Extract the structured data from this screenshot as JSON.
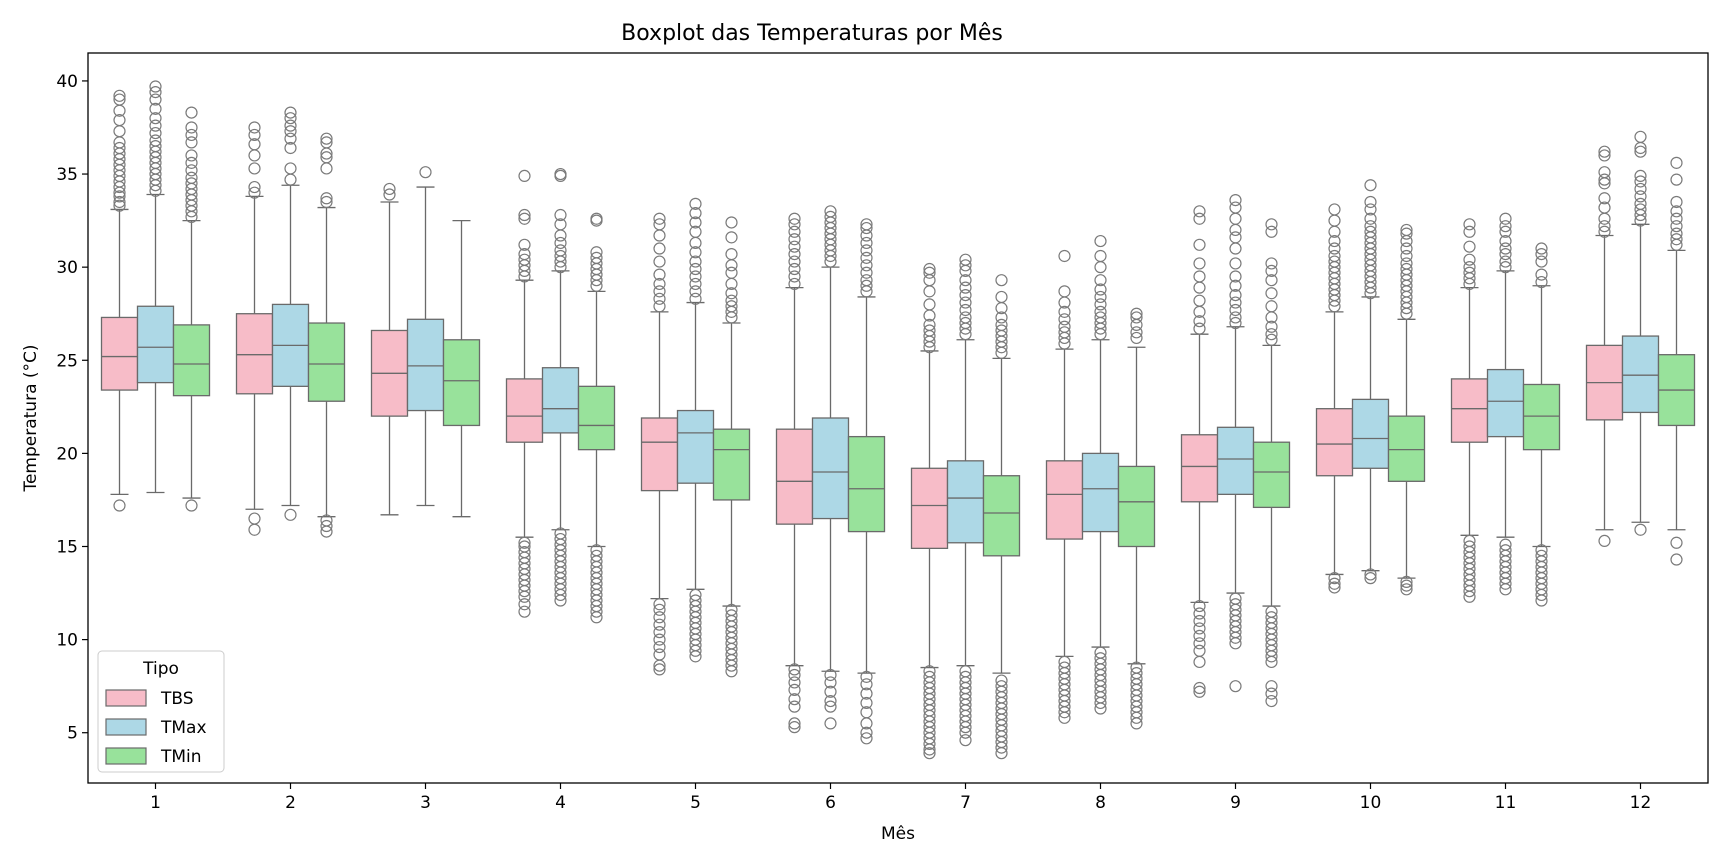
{
  "chart_data": {
    "type": "boxplot",
    "title": "Boxplot das Temperaturas por Mês",
    "xlabel": "Mês",
    "ylabel": "Temperatura (°C)",
    "ylim": [
      2.3,
      41.5
    ],
    "yticks": [
      5,
      10,
      15,
      20,
      25,
      30,
      35,
      40
    ],
    "categories": [
      "1",
      "2",
      "3",
      "4",
      "5",
      "6",
      "7",
      "8",
      "9",
      "10",
      "11",
      "12"
    ],
    "legend": {
      "title": "Tipo",
      "position": "lower-left"
    },
    "grid": false,
    "colors": {
      "TBS": "#f7bcc8",
      "TMax": "#add8e6",
      "TMin": "#98e29b",
      "line": "#6a6a6a",
      "flier": "#7a7a7a"
    },
    "series": [
      {
        "name": "TBS",
        "boxes": [
          {
            "whislo": 17.8,
            "q1": 23.4,
            "med": 25.2,
            "q3": 27.3,
            "whishi": 33.1,
            "fliers": [
              17.2,
              33.3,
              33.5,
              33.8,
              34.0,
              34.3,
              34.6,
              34.9,
              35.2,
              35.5,
              35.8,
              36.1,
              36.4,
              36.7,
              37.3,
              37.9,
              38.4,
              39.0,
              39.2
            ]
          },
          {
            "whislo": 17.0,
            "q1": 23.2,
            "med": 25.3,
            "q3": 27.5,
            "whishi": 33.8,
            "fliers": [
              15.9,
              16.5,
              34.0,
              34.3,
              35.3,
              36.0,
              36.6,
              37.1,
              37.5
            ]
          },
          {
            "whislo": 16.7,
            "q1": 22.0,
            "med": 24.3,
            "q3": 26.6,
            "whishi": 33.5,
            "fliers": [
              33.9,
              34.2
            ]
          },
          {
            "whislo": 15.5,
            "q1": 20.6,
            "med": 22.0,
            "q3": 24.0,
            "whishi": 29.3,
            "fliers": [
              11.5,
              11.9,
              12.3,
              12.6,
              12.9,
              13.2,
              13.5,
              13.8,
              14.1,
              14.4,
              14.7,
              15.0,
              15.2,
              29.5,
              29.8,
              30.1,
              30.4,
              30.7,
              31.2,
              32.6,
              32.8,
              34.9
            ]
          },
          {
            "whislo": 12.2,
            "q1": 18.0,
            "med": 20.6,
            "q3": 21.9,
            "whishi": 27.6,
            "fliers": [
              8.4,
              8.6,
              9.2,
              9.6,
              10.0,
              10.4,
              10.8,
              11.2,
              11.6,
              11.9,
              27.9,
              28.3,
              28.7,
              29.1,
              29.6,
              30.3,
              31.0,
              31.7,
              32.3,
              32.6
            ]
          },
          {
            "whislo": 8.6,
            "q1": 16.2,
            "med": 18.5,
            "q3": 21.3,
            "whishi": 28.9,
            "fliers": [
              5.3,
              5.5,
              6.4,
              6.8,
              7.3,
              7.7,
              8.1,
              8.4,
              29.1,
              29.5,
              29.9,
              30.3,
              30.7,
              31.1,
              31.5,
              31.9,
              32.3,
              32.6
            ]
          },
          {
            "whislo": 8.5,
            "q1": 14.9,
            "med": 17.2,
            "q3": 19.2,
            "whishi": 25.5,
            "fliers": [
              3.9,
              4.1,
              4.4,
              4.7,
              5.0,
              5.3,
              5.6,
              5.9,
              6.2,
              6.5,
              6.8,
              7.1,
              7.4,
              7.7,
              8.0,
              8.3,
              25.7,
              26.0,
              26.3,
              26.6,
              26.9,
              27.4,
              28.0,
              28.7,
              29.3,
              29.7,
              29.9
            ]
          },
          {
            "whislo": 9.1,
            "q1": 15.4,
            "med": 17.8,
            "q3": 19.6,
            "whishi": 25.6,
            "fliers": [
              5.8,
              6.1,
              6.4,
              6.7,
              7.0,
              7.3,
              7.6,
              7.9,
              8.2,
              8.5,
              8.8,
              25.9,
              26.2,
              26.5,
              26.8,
              27.2,
              27.6,
              28.1,
              28.7,
              30.6
            ]
          },
          {
            "whislo": 12.0,
            "q1": 17.4,
            "med": 19.3,
            "q3": 21.0,
            "whishi": 26.4,
            "fliers": [
              7.2,
              7.4,
              8.8,
              9.4,
              9.8,
              10.2,
              10.6,
              11.0,
              11.4,
              11.8,
              26.7,
              27.1,
              27.6,
              28.2,
              28.9,
              29.5,
              30.2,
              31.2,
              32.6,
              33.0
            ]
          },
          {
            "whislo": 13.5,
            "q1": 18.8,
            "med": 20.5,
            "q3": 22.4,
            "whishi": 27.6,
            "fliers": [
              12.8,
              13.0,
              13.3,
              27.9,
              28.2,
              28.5,
              28.8,
              29.1,
              29.4,
              29.7,
              30.0,
              30.3,
              30.6,
              31.0,
              31.4,
              31.9,
              32.5,
              33.1
            ]
          },
          {
            "whislo": 15.6,
            "q1": 20.6,
            "med": 22.4,
            "q3": 24.0,
            "whishi": 28.9,
            "fliers": [
              12.3,
              12.6,
              12.9,
              13.2,
              13.5,
              13.8,
              14.1,
              14.4,
              14.7,
              15.0,
              15.3,
              29.1,
              29.4,
              29.7,
              30.0,
              30.4,
              31.1,
              31.9,
              32.3
            ]
          },
          {
            "whislo": 15.9,
            "q1": 21.8,
            "med": 23.8,
            "q3": 25.8,
            "whishi": 31.7,
            "fliers": [
              15.3,
              31.9,
              32.2,
              32.6,
              33.2,
              33.7,
              34.5,
              34.7,
              35.1,
              36.0,
              36.2
            ]
          }
        ]
      },
      {
        "name": "TMax",
        "boxes": [
          {
            "whislo": 17.9,
            "q1": 23.8,
            "med": 25.7,
            "q3": 27.9,
            "whishi": 33.9,
            "fliers": [
              34.1,
              34.4,
              34.7,
              35.0,
              35.3,
              35.6,
              35.9,
              36.2,
              36.5,
              36.8,
              37.2,
              37.6,
              38.0,
              38.5,
              39.0,
              39.4,
              39.7
            ]
          },
          {
            "whislo": 17.2,
            "q1": 23.6,
            "med": 25.8,
            "q3": 28.0,
            "whishi": 34.4,
            "fliers": [
              16.7,
              34.7,
              35.3,
              36.4,
              36.9,
              37.3,
              37.6,
              38.0,
              38.3
            ]
          },
          {
            "whislo": 17.2,
            "q1": 22.3,
            "med": 24.7,
            "q3": 27.2,
            "whishi": 34.3,
            "fliers": [
              35.1
            ]
          },
          {
            "whislo": 15.9,
            "q1": 21.1,
            "med": 22.4,
            "q3": 24.6,
            "whishi": 29.8,
            "fliers": [
              12.1,
              12.4,
              12.7,
              13.0,
              13.3,
              13.6,
              13.9,
              14.2,
              14.5,
              14.8,
              15.1,
              15.4,
              15.7,
              30.0,
              30.3,
              30.6,
              30.9,
              31.3,
              31.7,
              32.3,
              32.8,
              34.9,
              35.0
            ]
          },
          {
            "whislo": 12.7,
            "q1": 18.4,
            "med": 21.1,
            "q3": 22.3,
            "whishi": 28.1,
            "fliers": [
              9.1,
              9.4,
              9.7,
              10.0,
              10.3,
              10.6,
              10.9,
              11.2,
              11.5,
              11.8,
              12.1,
              12.4,
              28.3,
              28.7,
              29.1,
              29.5,
              29.9,
              30.3,
              30.8,
              31.3,
              31.9,
              32.4,
              32.9,
              33.4
            ]
          },
          {
            "whislo": 8.3,
            "q1": 16.5,
            "med": 19.0,
            "q3": 21.9,
            "whishi": 30.0,
            "fliers": [
              5.5,
              6.4,
              6.7,
              7.2,
              7.7,
              8.1,
              30.3,
              30.6,
              30.9,
              31.2,
              31.5,
              31.8,
              32.1,
              32.4,
              32.7,
              33.0
            ]
          },
          {
            "whislo": 8.6,
            "q1": 15.2,
            "med": 17.6,
            "q3": 19.6,
            "whishi": 26.1,
            "fliers": [
              4.6,
              5.0,
              5.3,
              5.6,
              5.9,
              6.2,
              6.5,
              6.8,
              7.1,
              7.4,
              7.7,
              8.0,
              8.3,
              26.4,
              26.7,
              27.0,
              27.3,
              27.7,
              28.1,
              28.5,
              28.9,
              29.3,
              29.8,
              30.1,
              30.4
            ]
          },
          {
            "whislo": 9.6,
            "q1": 15.8,
            "med": 18.1,
            "q3": 20.0,
            "whishi": 26.1,
            "fliers": [
              6.3,
              6.6,
              6.9,
              7.2,
              7.5,
              7.8,
              8.1,
              8.4,
              8.7,
              9.0,
              9.3,
              26.4,
              26.7,
              27.0,
              27.3,
              27.6,
              28.0,
              28.4,
              28.8,
              29.3,
              30.0,
              30.6,
              31.4
            ]
          },
          {
            "whislo": 12.5,
            "q1": 17.8,
            "med": 19.7,
            "q3": 21.4,
            "whishi": 26.8,
            "fliers": [
              7.5,
              9.8,
              10.1,
              10.4,
              10.7,
              11.0,
              11.3,
              11.6,
              11.9,
              12.2,
              27.0,
              27.3,
              27.7,
              28.1,
              28.5,
              29.0,
              29.5,
              30.2,
              31.0,
              31.6,
              32.0,
              32.6,
              33.2,
              33.6
            ]
          },
          {
            "whislo": 13.7,
            "q1": 19.2,
            "med": 20.8,
            "q3": 22.9,
            "whishi": 28.4,
            "fliers": [
              13.3,
              13.5,
              28.6,
              28.9,
              29.2,
              29.5,
              29.8,
              30.1,
              30.4,
              30.7,
              31.0,
              31.3,
              31.6,
              31.9,
              32.2,
              32.6,
              33.1,
              33.5,
              34.4
            ]
          },
          {
            "whislo": 15.5,
            "q1": 20.9,
            "med": 22.8,
            "q3": 24.5,
            "whishi": 29.8,
            "fliers": [
              12.7,
              13.0,
              13.3,
              13.6,
              13.9,
              14.2,
              14.5,
              14.8,
              15.1,
              30.0,
              30.3,
              30.7,
              31.0,
              31.4,
              31.9,
              32.2,
              32.6
            ]
          },
          {
            "whislo": 16.3,
            "q1": 22.2,
            "med": 24.2,
            "q3": 26.3,
            "whishi": 32.3,
            "fliers": [
              15.9,
              32.5,
              32.8,
              33.1,
              33.4,
              33.8,
              34.2,
              34.6,
              34.9,
              36.2,
              36.4,
              37.0
            ]
          }
        ]
      },
      {
        "name": "TMin",
        "boxes": [
          {
            "whislo": 17.6,
            "q1": 23.1,
            "med": 24.8,
            "q3": 26.9,
            "whishi": 32.5,
            "fliers": [
              17.2,
              32.7,
              33.0,
              33.3,
              33.6,
              33.9,
              34.2,
              34.5,
              34.8,
              35.2,
              35.6,
              36.0,
              36.7,
              37.1,
              37.5,
              38.3
            ]
          },
          {
            "whislo": 16.6,
            "q1": 22.8,
            "med": 24.8,
            "q3": 27.0,
            "whishi": 33.2,
            "fliers": [
              15.8,
              16.1,
              16.4,
              33.5,
              33.7,
              35.3,
              35.9,
              36.1,
              36.7,
              36.9
            ]
          },
          {
            "whislo": 16.6,
            "q1": 21.5,
            "med": 23.9,
            "q3": 26.1,
            "whishi": 32.5,
            "fliers": []
          },
          {
            "whislo": 15.0,
            "q1": 20.2,
            "med": 21.5,
            "q3": 23.6,
            "whishi": 28.7,
            "fliers": [
              11.2,
              11.5,
              11.8,
              12.1,
              12.4,
              12.7,
              13.0,
              13.3,
              13.6,
              13.9,
              14.2,
              14.5,
              14.8,
              29.0,
              29.3,
              29.6,
              29.9,
              30.2,
              30.5,
              30.8,
              32.5,
              32.6
            ]
          },
          {
            "whislo": 11.8,
            "q1": 17.5,
            "med": 20.2,
            "q3": 21.3,
            "whishi": 27.0,
            "fliers": [
              8.3,
              8.6,
              8.9,
              9.2,
              9.5,
              9.8,
              10.1,
              10.4,
              10.7,
              11.0,
              11.3,
              11.6,
              27.3,
              27.6,
              27.9,
              28.2,
              28.6,
              29.1,
              29.7,
              30.1,
              30.7,
              31.6,
              32.4
            ]
          },
          {
            "whislo": 8.2,
            "q1": 15.8,
            "med": 18.1,
            "q3": 20.9,
            "whishi": 28.4,
            "fliers": [
              4.7,
              5.0,
              5.5,
              6.1,
              6.6,
              7.1,
              7.6,
              8.0,
              28.7,
              29.0,
              29.3,
              29.7,
              30.1,
              30.5,
              30.9,
              31.3,
              31.7,
              32.1,
              32.3
            ]
          },
          {
            "whislo": 8.2,
            "q1": 14.5,
            "med": 16.8,
            "q3": 18.8,
            "whishi": 25.1,
            "fliers": [
              3.9,
              4.2,
              4.5,
              4.8,
              5.1,
              5.4,
              5.7,
              6.0,
              6.3,
              6.6,
              6.9,
              7.2,
              7.5,
              7.8,
              25.4,
              25.7,
              26.0,
              26.3,
              26.6,
              26.9,
              27.3,
              27.8,
              28.4,
              29.3
            ]
          },
          {
            "whislo": 8.7,
            "q1": 15.0,
            "med": 17.4,
            "q3": 19.3,
            "whishi": 25.7,
            "fliers": [
              5.5,
              5.8,
              6.1,
              6.4,
              6.7,
              7.0,
              7.3,
              7.6,
              7.9,
              8.2,
              8.5,
              26.2,
              26.5,
              26.9,
              27.3,
              27.5
            ]
          },
          {
            "whislo": 11.8,
            "q1": 17.1,
            "med": 19.0,
            "q3": 20.6,
            "whishi": 25.8,
            "fliers": [
              6.7,
              7.1,
              7.5,
              8.8,
              9.1,
              9.4,
              9.7,
              10.0,
              10.3,
              10.6,
              10.9,
              11.2,
              11.5,
              26.1,
              26.4,
              26.8,
              27.3,
              27.9,
              28.6,
              29.3,
              29.8,
              30.2,
              31.9,
              32.3
            ]
          },
          {
            "whislo": 13.3,
            "q1": 18.5,
            "med": 20.2,
            "q3": 22.0,
            "whishi": 27.2,
            "fliers": [
              12.7,
              12.9,
              13.1,
              27.5,
              27.8,
              28.1,
              28.4,
              28.7,
              29.0,
              29.3,
              29.6,
              29.9,
              30.2,
              30.6,
              31.0,
              31.4,
              31.8,
              32.0
            ]
          },
          {
            "whislo": 15.0,
            "q1": 20.2,
            "med": 22.0,
            "q3": 23.7,
            "whishi": 29.0,
            "fliers": [
              12.1,
              12.4,
              12.7,
              13.0,
              13.3,
              13.6,
              13.9,
              14.2,
              14.5,
              14.8,
              29.2,
              29.6,
              30.3,
              30.7,
              31.0
            ]
          },
          {
            "whislo": 15.9,
            "q1": 21.5,
            "med": 23.4,
            "q3": 25.3,
            "whishi": 30.9,
            "fliers": [
              14.3,
              15.2,
              31.2,
              31.5,
              31.8,
              32.2,
              32.6,
              33.0,
              33.5,
              34.7,
              35.6
            ]
          }
        ]
      }
    ]
  }
}
